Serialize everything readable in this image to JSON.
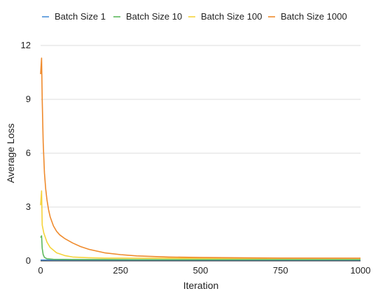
{
  "chart_data": {
    "type": "line",
    "title": "",
    "xlabel": "Iteration",
    "ylabel": "Average Loss",
    "xlim": [
      0,
      1000
    ],
    "ylim": [
      0,
      12
    ],
    "xticks": [
      0,
      250,
      500,
      750,
      1000
    ],
    "yticks": [
      0,
      3,
      6,
      9,
      12
    ],
    "grid": true,
    "legend_position": "top",
    "series": [
      {
        "name": "Batch Size 1",
        "color": "#4a90d9",
        "x": [
          0,
          5,
          10,
          20,
          40,
          60,
          100,
          150,
          200,
          300,
          500,
          750,
          1000
        ],
        "y": [
          0.05,
          0.05,
          0.05,
          0.05,
          0.05,
          0.05,
          0.05,
          0.05,
          0.05,
          0.05,
          0.05,
          0.05,
          0.05
        ]
      },
      {
        "name": "Batch Size 10",
        "color": "#5cb85c",
        "x": [
          0,
          3,
          5,
          8,
          12,
          20,
          40,
          100,
          200,
          300,
          500,
          750,
          1000
        ],
        "y": [
          1.3,
          1.4,
          0.7,
          0.35,
          0.2,
          0.12,
          0.09,
          0.08,
          0.08,
          0.07,
          0.07,
          0.07,
          0.07
        ]
      },
      {
        "name": "Batch Size 100",
        "color": "#f5d33a",
        "x": [
          0,
          3,
          5,
          10,
          20,
          30,
          50,
          75,
          100,
          150,
          200,
          300,
          500,
          750,
          1000
        ],
        "y": [
          3.1,
          3.9,
          2.0,
          1.55,
          1.05,
          0.75,
          0.45,
          0.3,
          0.22,
          0.18,
          0.16,
          0.15,
          0.14,
          0.14,
          0.14
        ]
      },
      {
        "name": "Batch Size 1000",
        "color": "#ef8a2c",
        "x": [
          0,
          3,
          5,
          8,
          12,
          16,
          20,
          25,
          30,
          40,
          50,
          60,
          75,
          100,
          125,
          150,
          200,
          250,
          300,
          400,
          500,
          750,
          1000
        ],
        "y": [
          10.4,
          11.3,
          9.0,
          6.6,
          4.9,
          4.0,
          3.4,
          2.85,
          2.45,
          1.95,
          1.65,
          1.45,
          1.25,
          1.0,
          0.8,
          0.65,
          0.45,
          0.35,
          0.28,
          0.22,
          0.19,
          0.16,
          0.15
        ]
      }
    ]
  }
}
